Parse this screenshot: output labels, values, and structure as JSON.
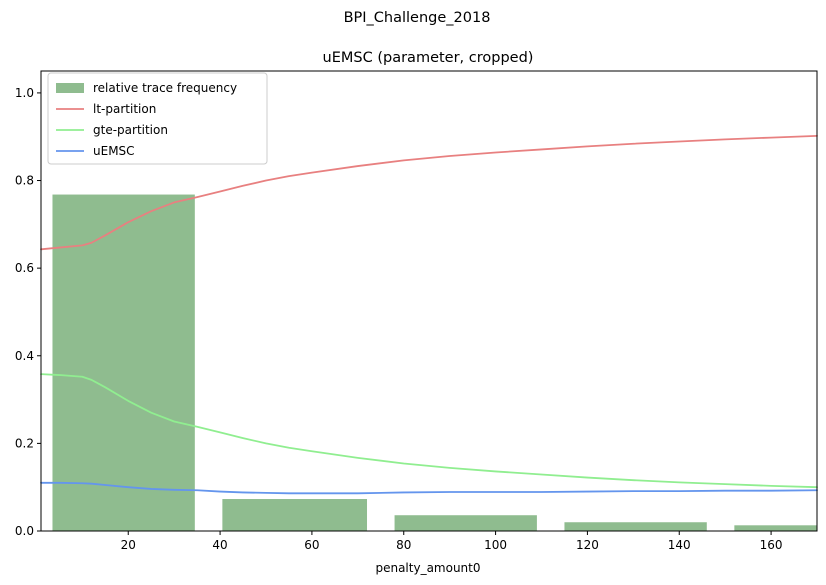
{
  "chart_data": {
    "type": "bar",
    "suptitle": "BPI_Challenge_2018",
    "title": "uEMSC (parameter, cropped)",
    "xlabel": "penalty_amount0",
    "ylabel": "",
    "xlim": [
      1,
      170
    ],
    "ylim": [
      0,
      1.05
    ],
    "xticks": [
      20,
      40,
      60,
      80,
      100,
      120,
      140,
      160
    ],
    "yticks": [
      0.0,
      0.2,
      0.4,
      0.6,
      0.8,
      1.0
    ],
    "ytick_labels": [
      "0.0",
      "0.2",
      "0.4",
      "0.6",
      "0.8",
      "1.0"
    ],
    "grid": false,
    "legend_position": "top-left",
    "bars": {
      "name": "relative trace frequency",
      "color": "#8fbc8f",
      "bins": [
        {
          "x0": 3.5,
          "x1": 34.5,
          "value": 0.768
        },
        {
          "x0": 40.5,
          "x1": 72,
          "value": 0.073
        },
        {
          "x0": 78,
          "x1": 109,
          "value": 0.036
        },
        {
          "x0": 115,
          "x1": 146,
          "value": 0.02
        },
        {
          "x0": 152,
          "x1": 170,
          "value": 0.013
        }
      ]
    },
    "series": [
      {
        "name": "lt-partition",
        "color": "#e88080",
        "x": [
          1,
          5,
          10,
          12,
          15,
          20,
          25,
          30,
          35,
          40,
          45,
          50,
          55,
          60,
          70,
          80,
          90,
          100,
          110,
          120,
          130,
          140,
          150,
          160,
          170
        ],
        "y": [
          0.643,
          0.647,
          0.652,
          0.658,
          0.675,
          0.705,
          0.73,
          0.75,
          0.762,
          0.775,
          0.788,
          0.8,
          0.81,
          0.818,
          0.833,
          0.846,
          0.856,
          0.864,
          0.871,
          0.878,
          0.884,
          0.889,
          0.894,
          0.898,
          0.902
        ]
      },
      {
        "name": "gte-partition",
        "color": "#90ee90",
        "x": [
          1,
          5,
          10,
          12,
          15,
          20,
          25,
          30,
          35,
          40,
          45,
          50,
          55,
          60,
          70,
          80,
          90,
          100,
          110,
          120,
          130,
          140,
          150,
          160,
          170
        ],
        "y": [
          0.358,
          0.356,
          0.352,
          0.345,
          0.328,
          0.297,
          0.27,
          0.25,
          0.238,
          0.225,
          0.212,
          0.2,
          0.19,
          0.182,
          0.167,
          0.154,
          0.144,
          0.136,
          0.129,
          0.122,
          0.116,
          0.111,
          0.107,
          0.103,
          0.1
        ]
      },
      {
        "name": "uEMSC",
        "color": "#6495ed",
        "x": [
          1,
          5,
          10,
          12,
          15,
          20,
          25,
          30,
          35,
          40,
          45,
          50,
          55,
          60,
          70,
          80,
          90,
          100,
          110,
          120,
          130,
          140,
          150,
          160,
          170
        ],
        "y": [
          0.11,
          0.11,
          0.109,
          0.108,
          0.105,
          0.1,
          0.096,
          0.094,
          0.093,
          0.09,
          0.088,
          0.087,
          0.086,
          0.086,
          0.086,
          0.088,
          0.089,
          0.089,
          0.089,
          0.09,
          0.091,
          0.091,
          0.092,
          0.092,
          0.093
        ]
      }
    ]
  }
}
